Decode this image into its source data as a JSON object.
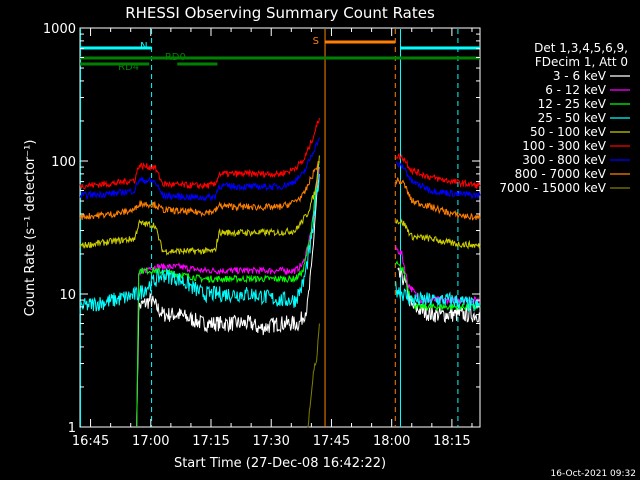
{
  "title": "RHESSI Observing Summary Count Rates",
  "footer_date": "16-Oct-2021 09:32",
  "chart_data": {
    "type": "line",
    "title": "RHESSI Observing Summary Count Rates",
    "xlabel": "Start Time (27-Dec-08 16:42:22)",
    "ylabel": "Count Rate (s⁻¹ detector⁻¹)",
    "x_ticks": [
      "16:45",
      "17:00",
      "17:15",
      "17:30",
      "17:45",
      "18:00",
      "18:15"
    ],
    "x_ticks_min": [
      165,
      180,
      195,
      210,
      225,
      240,
      255
    ],
    "xlim_min": [
      162.37,
      262
    ],
    "y_scale": "log",
    "ylim": [
      1,
      1000
    ],
    "y_ticks": [
      1,
      10,
      100,
      1000
    ],
    "legend_header": [
      "Det 1,3,4,5,6,9,",
      "FDecim 1, Att 0"
    ],
    "series": [
      {
        "name": "3 - 6 keV",
        "color": "#ffffff",
        "segments": [
          [
            [
              162.4,
              null
            ],
            [
              176.5,
              0.9
            ],
            [
              177,
              8
            ],
            [
              180,
              9
            ],
            [
              183,
              7
            ],
            [
              187,
              7
            ],
            [
              193,
              6
            ],
            [
              196,
              6
            ],
            [
              205,
              6
            ],
            [
              207,
              5.5
            ],
            [
              212,
              6
            ],
            [
              217,
              6
            ],
            [
              219,
              8
            ],
            [
              220,
              15
            ],
            [
              221,
              40
            ],
            [
              222,
              90
            ]
          ],
          [
            [
              240.2,
              null
            ],
            [
              241.5,
              14
            ],
            [
              243,
              13
            ],
            [
              245,
              8
            ],
            [
              250,
              7
            ],
            [
              255,
              7
            ],
            [
              262,
              7
            ]
          ]
        ]
      },
      {
        "name": "6 - 12 keV",
        "color": "#ff00ff",
        "segments": [
          [
            [
              176.5,
              1
            ],
            [
              177,
              14
            ],
            [
              180,
              16
            ],
            [
              187,
              16
            ],
            [
              193,
              15
            ],
            [
              205,
              15
            ],
            [
              212,
              15
            ],
            [
              216,
              15
            ],
            [
              218,
              17
            ],
            [
              220,
              30
            ],
            [
              222,
              90
            ]
          ],
          [
            [
              241,
              22
            ],
            [
              242.5,
              20
            ],
            [
              244,
              12
            ],
            [
              247,
              9
            ],
            [
              262,
              9
            ]
          ]
        ]
      },
      {
        "name": "12 - 25 keV",
        "color": "#00ff00",
        "segments": [
          [
            [
              176.5,
              1
            ],
            [
              177,
              15
            ],
            [
              181,
              15
            ],
            [
              187,
              14
            ],
            [
              193,
              13
            ],
            [
              205,
              13
            ],
            [
              212,
              13
            ],
            [
              216,
              13
            ],
            [
              218,
              15
            ],
            [
              220,
              30
            ],
            [
              222,
              100
            ]
          ],
          [
            [
              241,
              17
            ],
            [
              243,
              15
            ],
            [
              244,
              11
            ],
            [
              246,
              8
            ],
            [
              262,
              8
            ]
          ]
        ]
      },
      {
        "name": "25 - 50 keV",
        "color": "#00ffff",
        "segments": [
          [
            [
              162.4,
              8
            ],
            [
              171,
              9
            ],
            [
              177,
              10
            ],
            [
              180,
              12
            ],
            [
              183,
              14
            ],
            [
              187,
              13
            ],
            [
              193,
              10
            ],
            [
              205,
              10
            ],
            [
              212,
              9
            ],
            [
              216,
              9
            ],
            [
              218,
              12
            ],
            [
              220,
              25
            ],
            [
              222,
              80
            ]
          ],
          [
            [
              241,
              11
            ],
            [
              243,
              10
            ],
            [
              245,
              9
            ],
            [
              255,
              9
            ],
            [
              262,
              8
            ]
          ]
        ]
      },
      {
        "name": "50 - 100 keV",
        "color": "#cccc00",
        "segments": [
          [
            [
              162.4,
              23
            ],
            [
              171,
              25
            ],
            [
              176,
              26
            ],
            [
              177,
              34
            ],
            [
              181,
              33
            ],
            [
              183,
              21
            ],
            [
              187,
              21
            ],
            [
              193,
              21
            ],
            [
              196,
              21
            ],
            [
              197,
              29
            ],
            [
              205,
              29
            ],
            [
              212,
              29
            ],
            [
              216,
              30
            ],
            [
              219,
              40
            ],
            [
              221,
              60
            ],
            [
              222,
              110
            ]
          ],
          [
            [
              241,
              36
            ],
            [
              243,
              34
            ],
            [
              245,
              27
            ],
            [
              250,
              26
            ],
            [
              255,
              24
            ],
            [
              262,
              23
            ]
          ]
        ]
      },
      {
        "name": "100 - 300 keV",
        "color": "#ff0000",
        "segments": [
          [
            [
              162.4,
              65
            ],
            [
              171,
              68
            ],
            [
              176,
              72
            ],
            [
              177,
              92
            ],
            [
              181,
              90
            ],
            [
              183,
              67
            ],
            [
              187,
              66
            ],
            [
              193,
              65
            ],
            [
              196,
              66
            ],
            [
              197,
              80
            ],
            [
              205,
              80
            ],
            [
              212,
              80
            ],
            [
              215,
              85
            ],
            [
              218,
              100
            ],
            [
              220,
              140
            ],
            [
              222,
              210
            ]
          ],
          [
            [
              241,
              110
            ],
            [
              243,
              105
            ],
            [
              245,
              85
            ],
            [
              250,
              75
            ],
            [
              255,
              70
            ],
            [
              262,
              65
            ]
          ]
        ]
      },
      {
        "name": "300 - 800 keV",
        "color": "#0000ff",
        "segments": [
          [
            [
              162.4,
              55
            ],
            [
              171,
              57
            ],
            [
              176,
              60
            ],
            [
              177,
              72
            ],
            [
              181,
              70
            ],
            [
              183,
              55
            ],
            [
              187,
              54
            ],
            [
              193,
              53
            ],
            [
              196,
              54
            ],
            [
              197,
              65
            ],
            [
              205,
              64
            ],
            [
              212,
              64
            ],
            [
              215,
              68
            ],
            [
              218,
              80
            ],
            [
              220,
              110
            ],
            [
              222,
              150
            ]
          ],
          [
            [
              241,
              95
            ],
            [
              243,
              90
            ],
            [
              245,
              70
            ],
            [
              250,
              60
            ],
            [
              255,
              57
            ],
            [
              262,
              55
            ]
          ]
        ]
      },
      {
        "name": "800 - 7000 keV",
        "color": "#ff8000",
        "segments": [
          [
            [
              162.4,
              38
            ],
            [
              171,
              40
            ],
            [
              176,
              43
            ],
            [
              177,
              48
            ],
            [
              181,
              47
            ],
            [
              183,
              43
            ],
            [
              187,
              42
            ],
            [
              193,
              41
            ],
            [
              196,
              42
            ],
            [
              197,
              46
            ],
            [
              205,
              45
            ],
            [
              212,
              45
            ],
            [
              215,
              48
            ],
            [
              218,
              55
            ],
            [
              220,
              75
            ],
            [
              222,
              100
            ]
          ],
          [
            [
              241,
              72
            ],
            [
              243,
              68
            ],
            [
              245,
              50
            ],
            [
              250,
              45
            ],
            [
              255,
              40
            ],
            [
              262,
              37
            ]
          ]
        ]
      },
      {
        "name": "7000 - 15000 keV",
        "color": "#808000",
        "segments": [
          [
            [
              219,
              0.9
            ],
            [
              219.5,
              1.3
            ],
            [
              220.5,
              2.6
            ],
            [
              221.3,
              3.2
            ],
            [
              222,
              6
            ]
          ]
        ]
      }
    ],
    "mode_bars": [
      {
        "label": "N",
        "color": "#00ffff",
        "start_min": 162.4,
        "end_min": 180.2,
        "level": 1.0
      },
      {
        "label": "N",
        "color": "#00ffff",
        "start_min": 242.2,
        "end_min": 262,
        "level": 1.0
      },
      {
        "label": "RD0",
        "color": "#008000",
        "start_min": 162.4,
        "end_min": 262,
        "level": 2
      },
      {
        "label": "RD4",
        "color": "#008000",
        "start_min": 162.4,
        "end_min": 179.6,
        "level": 3
      },
      {
        "label": "RD4",
        "color": "#008000",
        "start_min": 186.6,
        "end_min": 196.6,
        "level": 3
      },
      {
        "label": "S",
        "color": "#ff8000",
        "start_min": 223.4,
        "end_min": 240.9,
        "level": 0
      }
    ],
    "events": [
      {
        "name": "night-start",
        "color": "#00ffff",
        "min": 180.2,
        "style": "dash"
      },
      {
        "name": "night-end",
        "color": "#00ffff",
        "min": 242.2,
        "style": "solid"
      },
      {
        "name": "saa-start",
        "color": "#ff8000",
        "min": 223.4,
        "style": "solid"
      },
      {
        "name": "saa-end",
        "color": "#ff8000",
        "min": 240.9,
        "style": "dash"
      },
      {
        "name": "data-gap",
        "color": "#00ffff",
        "min": 162.5,
        "style": "solid"
      },
      {
        "name": "data-end",
        "color": "#00ffff",
        "min": 256.5,
        "style": "dash"
      }
    ]
  }
}
